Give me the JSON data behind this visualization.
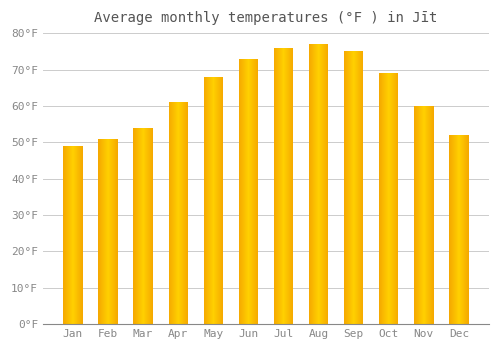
{
  "title": "Average monthly temperatures (°F ) in Jīt",
  "months": [
    "Jan",
    "Feb",
    "Mar",
    "Apr",
    "May",
    "Jun",
    "Jul",
    "Aug",
    "Sep",
    "Oct",
    "Nov",
    "Dec"
  ],
  "values": [
    49,
    51,
    54,
    61,
    68,
    73,
    76,
    77,
    75,
    69,
    60,
    52
  ],
  "bar_center_color": "#FFD040",
  "bar_edge_color": "#F5A800",
  "background_color": "#FFFFFF",
  "grid_color": "#CCCCCC",
  "text_color": "#888888",
  "title_color": "#555555",
  "ylim": [
    0,
    80
  ],
  "yticks": [
    0,
    10,
    20,
    30,
    40,
    50,
    60,
    70,
    80
  ],
  "ytick_labels": [
    "0°F",
    "10°F",
    "20°F",
    "30°F",
    "40°F",
    "50°F",
    "60°F",
    "70°F",
    "80°F"
  ],
  "title_fontsize": 10,
  "tick_fontsize": 8,
  "figsize": [
    5.0,
    3.5
  ],
  "dpi": 100,
  "bar_width": 0.55
}
